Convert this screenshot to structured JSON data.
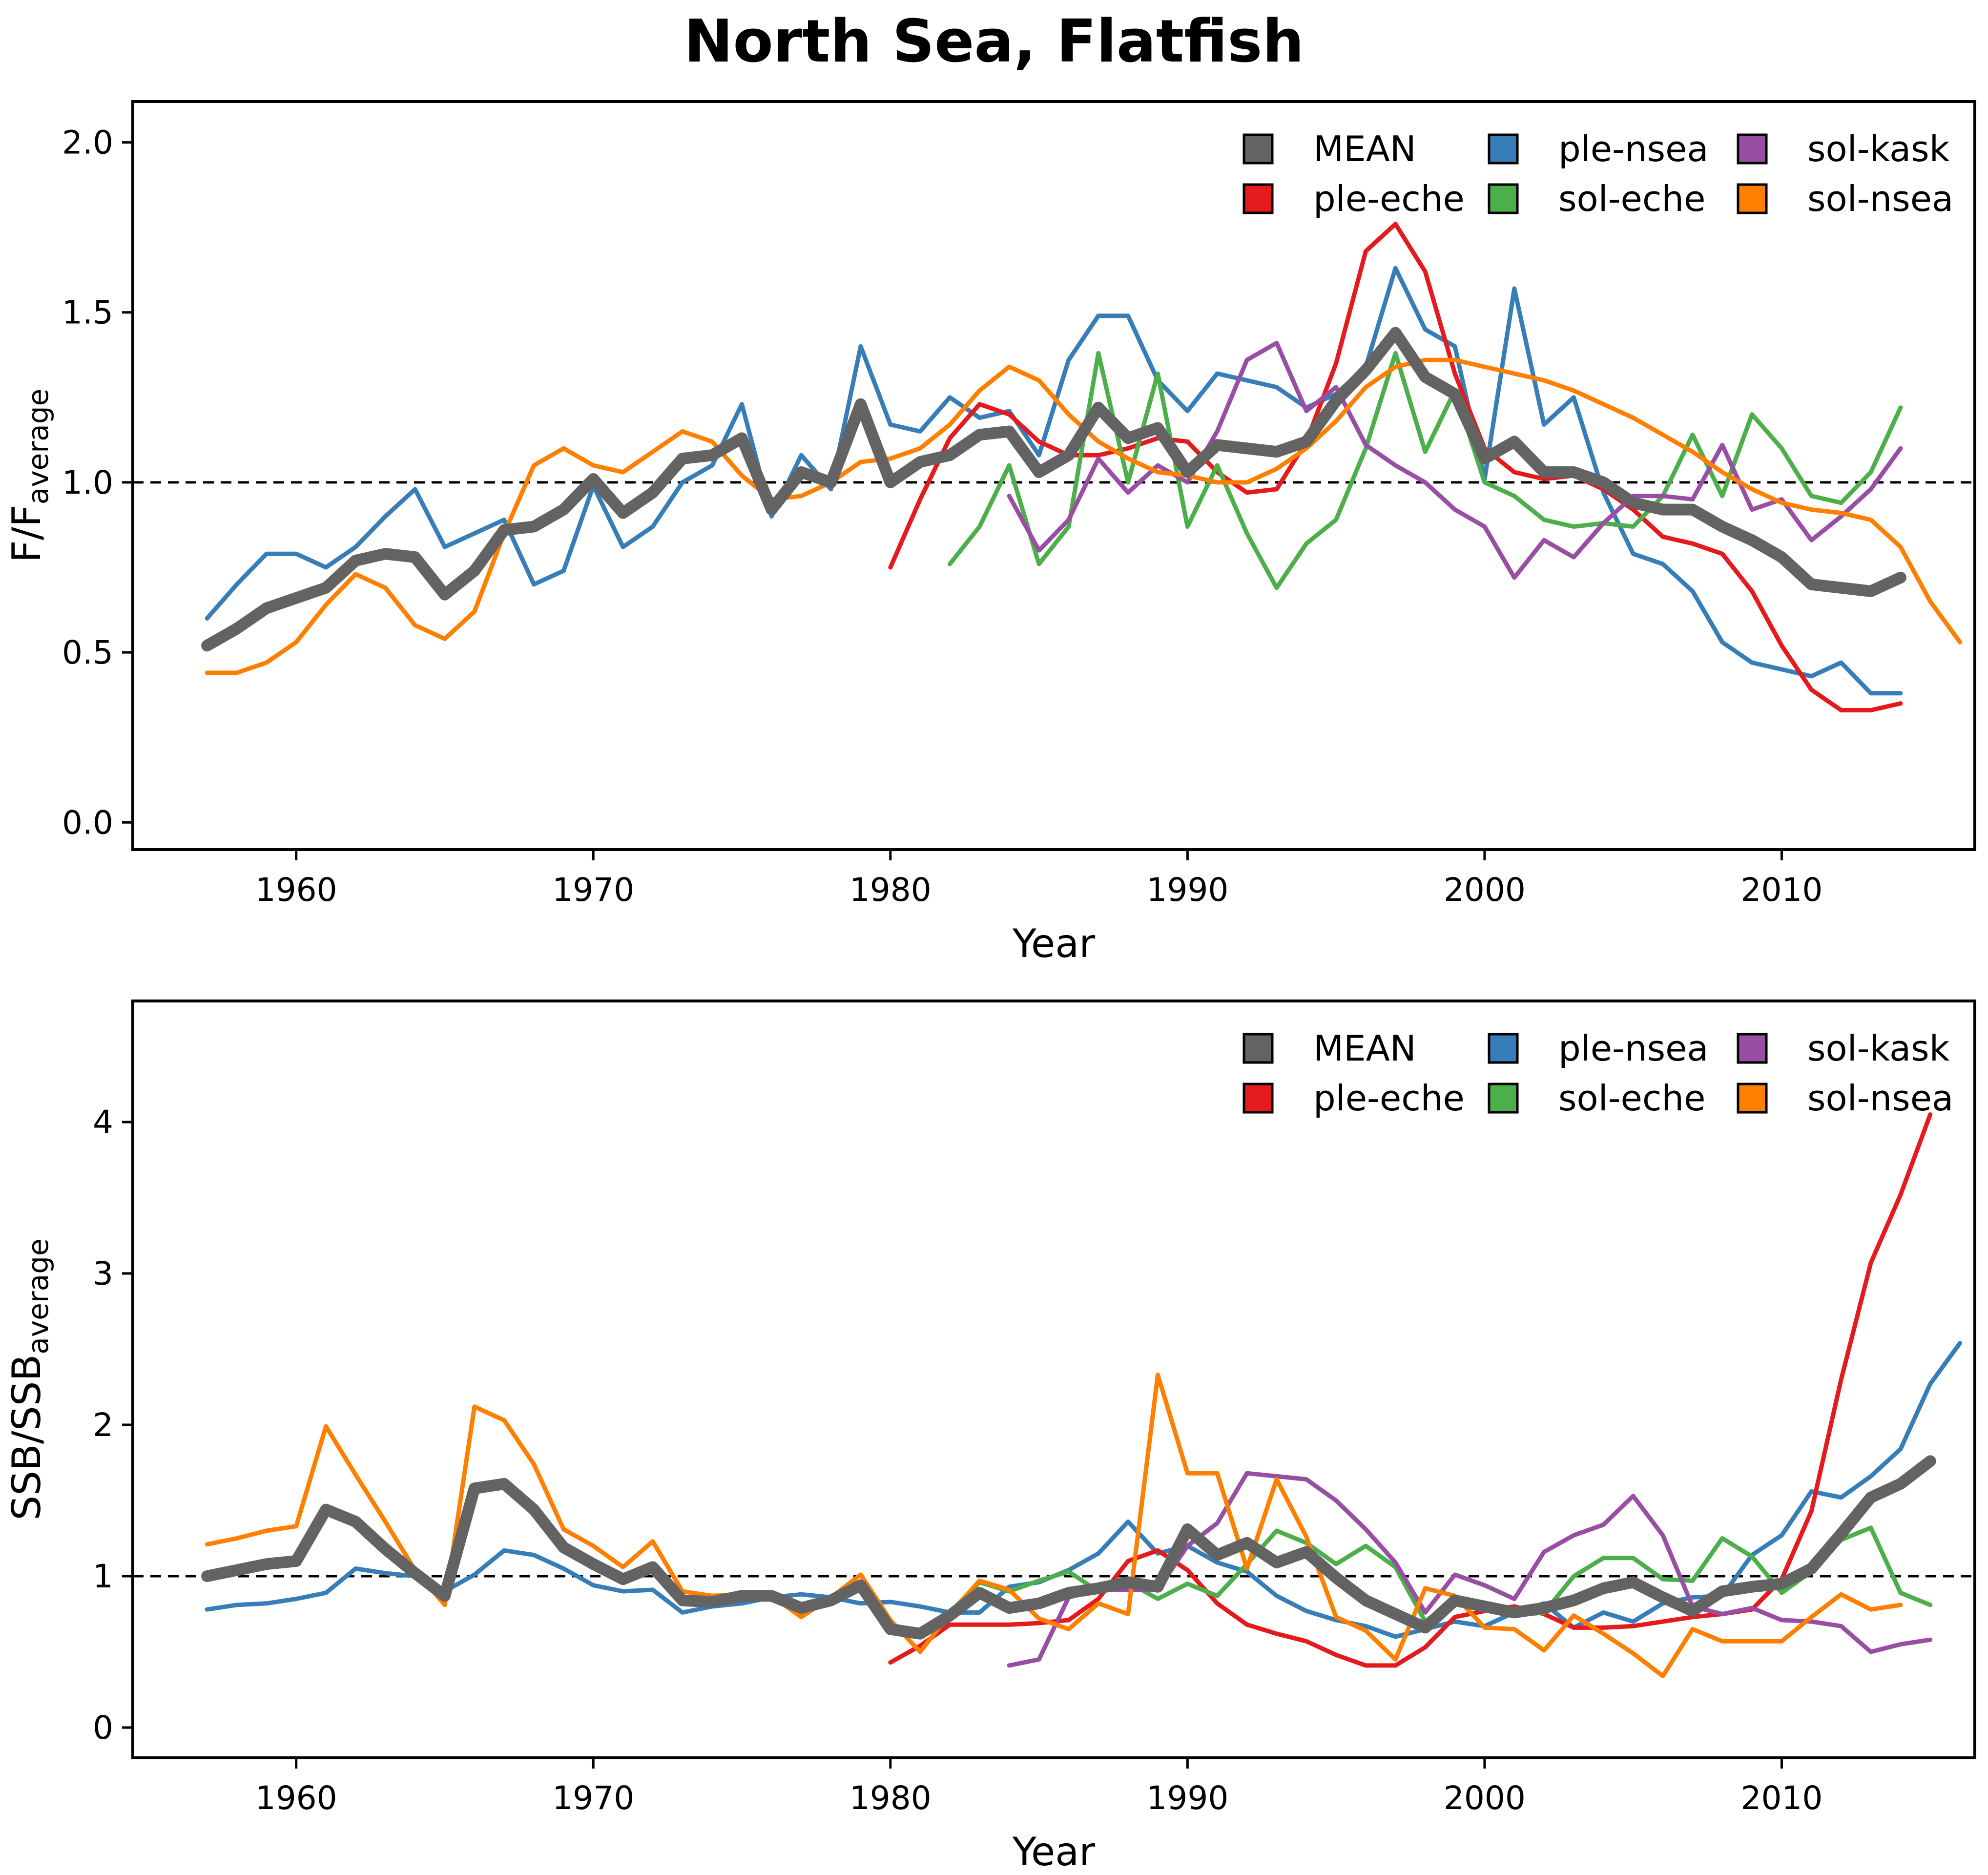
{
  "figure": {
    "title": "North Sea, Flatfish"
  },
  "legend": [
    {
      "label": "MEAN",
      "color": "#636363"
    },
    {
      "label": "ple-eche",
      "color": "#e41a1c"
    },
    {
      "label": "ple-nsea",
      "color": "#377eb8"
    },
    {
      "label": "sol-eche",
      "color": "#4daf4a"
    },
    {
      "label": "sol-kask",
      "color": "#984ea3"
    },
    {
      "label": "sol-nsea",
      "color": "#ff7f00"
    }
  ],
  "chart_data": [
    {
      "type": "line",
      "xlabel": "Year",
      "ylabel_main": "F/F",
      "ylabel_sub": "average",
      "xlim": [
        1954.5,
        2016.5
      ],
      "ylim": [
        -0.08,
        2.12
      ],
      "x_ticks": [
        1960,
        1970,
        1980,
        1990,
        2000,
        2010
      ],
      "y_ticks": [
        0.0,
        0.5,
        1.0,
        1.5,
        2.0
      ],
      "y_tick_labels": [
        "0.0",
        "0.5",
        "1.0",
        "1.5",
        "2.0"
      ],
      "reference_line": 1.0,
      "grid": false,
      "legend_position": "top-right",
      "series": [
        {
          "name": "ple-nsea",
          "color": "#377eb8",
          "width": 9,
          "start": 1957,
          "values": [
            0.6,
            0.7,
            0.79,
            0.79,
            0.75,
            0.81,
            0.9,
            0.98,
            0.81,
            0.85,
            0.89,
            0.7,
            0.74,
            0.99,
            0.81,
            0.87,
            1.0,
            1.05,
            1.23,
            0.9,
            1.08,
            0.98,
            1.4,
            1.17,
            1.15,
            1.25,
            1.19,
            1.21,
            1.08,
            1.36,
            1.49,
            1.49,
            1.3,
            1.21,
            1.32,
            1.3,
            1.28,
            1.22,
            1.26,
            1.34,
            1.63,
            1.45,
            1.4,
            1.01,
            1.57,
            1.17,
            1.25,
            0.97,
            0.79,
            0.76,
            0.68,
            0.53,
            0.47,
            0.45,
            0.43,
            0.47,
            0.38,
            0.38
          ]
        },
        {
          "name": "ple-eche",
          "color": "#e41a1c",
          "width": 9,
          "start": 1980,
          "values": [
            0.75,
            0.95,
            1.13,
            1.23,
            1.2,
            1.12,
            1.08,
            1.08,
            1.1,
            1.13,
            1.12,
            1.03,
            0.97,
            0.98,
            1.12,
            1.35,
            1.68,
            1.76,
            1.62,
            1.32,
            1.1,
            1.03,
            1.01,
            1.02,
            0.98,
            0.92,
            0.84,
            0.82,
            0.79,
            0.68,
            0.52,
            0.39,
            0.33,
            0.33,
            0.35
          ]
        },
        {
          "name": "sol-eche",
          "color": "#4daf4a",
          "width": 9,
          "start": 1982,
          "values": [
            0.76,
            0.87,
            1.05,
            0.76,
            0.87,
            1.38,
            1.0,
            1.32,
            0.87,
            1.05,
            0.85,
            0.69,
            0.82,
            0.89,
            1.1,
            1.38,
            1.09,
            1.27,
            1.0,
            0.96,
            0.89,
            0.87,
            0.88,
            0.87,
            0.96,
            1.14,
            0.96,
            1.2,
            1.1,
            0.96,
            0.94,
            1.03,
            1.22
          ]
        },
        {
          "name": "sol-kask",
          "color": "#984ea3",
          "width": 9,
          "start": 1984,
          "values": [
            0.96,
            0.8,
            0.89,
            1.07,
            0.97,
            1.05,
            1.0,
            1.15,
            1.36,
            1.41,
            1.21,
            1.28,
            1.11,
            1.05,
            1.0,
            0.92,
            0.87,
            0.72,
            0.83,
            0.78,
            0.88,
            0.96,
            0.96,
            0.95,
            1.11,
            0.92,
            0.95,
            0.83,
            0.9,
            0.98,
            1.1
          ]
        },
        {
          "name": "sol-nsea",
          "color": "#ff7f00",
          "width": 9,
          "start": 1957,
          "values": [
            0.44,
            0.44,
            0.47,
            0.53,
            0.64,
            0.73,
            0.69,
            0.58,
            0.54,
            0.62,
            0.85,
            1.05,
            1.1,
            1.05,
            1.03,
            1.09,
            1.15,
            1.12,
            1.02,
            0.95,
            0.96,
            1.0,
            1.06,
            1.07,
            1.1,
            1.17,
            1.27,
            1.34,
            1.3,
            1.2,
            1.12,
            1.07,
            1.03,
            1.02,
            1.0,
            1.0,
            1.04,
            1.1,
            1.18,
            1.28,
            1.34,
            1.36,
            1.36,
            1.34,
            1.32,
            1.3,
            1.27,
            1.23,
            1.19,
            1.14,
            1.09,
            1.03,
            0.98,
            0.94,
            0.92,
            0.91,
            0.89,
            0.81,
            0.65,
            0.53
          ]
        },
        {
          "name": "MEAN",
          "color": "#636363",
          "width": 24,
          "start": 1957,
          "values": [
            0.52,
            0.57,
            0.63,
            0.66,
            0.69,
            0.77,
            0.79,
            0.78,
            0.67,
            0.74,
            0.86,
            0.87,
            0.92,
            1.01,
            0.91,
            0.97,
            1.07,
            1.08,
            1.13,
            0.92,
            1.03,
            1.0,
            1.23,
            1.0,
            1.06,
            1.08,
            1.14,
            1.15,
            1.03,
            1.08,
            1.22,
            1.13,
            1.16,
            1.03,
            1.11,
            1.1,
            1.09,
            1.12,
            1.24,
            1.33,
            1.44,
            1.31,
            1.26,
            1.07,
            1.12,
            1.03,
            1.03,
            1.0,
            0.94,
            0.92,
            0.92,
            0.87,
            0.83,
            0.78,
            0.7,
            0.69,
            0.68,
            0.72
          ]
        }
      ]
    },
    {
      "type": "line",
      "xlabel": "Year",
      "ylabel_main": "SSB/SSB",
      "ylabel_sub": "average",
      "xlim": [
        1954.5,
        2016.5
      ],
      "ylim": [
        -0.2,
        4.8
      ],
      "x_ticks": [
        1960,
        1970,
        1980,
        1990,
        2000,
        2010
      ],
      "y_ticks": [
        0,
        1,
        2,
        3,
        4
      ],
      "y_tick_labels": [
        "0",
        "1",
        "2",
        "3",
        "4"
      ],
      "reference_line": 1.0,
      "grid": false,
      "legend_position": "top-right",
      "series": [
        {
          "name": "ple-nsea",
          "color": "#377eb8",
          "width": 9,
          "start": 1957,
          "values": [
            0.78,
            0.81,
            0.82,
            0.85,
            0.89,
            1.05,
            1.02,
            1.0,
            0.9,
            1.01,
            1.17,
            1.14,
            1.05,
            0.94,
            0.9,
            0.91,
            0.76,
            0.8,
            0.82,
            0.86,
            0.88,
            0.86,
            0.82,
            0.83,
            0.8,
            0.76,
            0.76,
            0.93,
            0.96,
            1.04,
            1.15,
            1.36,
            1.15,
            1.2,
            1.09,
            1.03,
            0.87,
            0.77,
            0.71,
            0.67,
            0.6,
            0.65,
            0.7,
            0.67,
            0.76,
            0.82,
            0.66,
            0.76,
            0.7,
            0.82,
            0.86,
            0.87,
            1.14,
            1.27,
            1.56,
            1.52,
            1.66,
            1.84,
            2.27,
            2.54
          ]
        },
        {
          "name": "ple-eche",
          "color": "#e41a1c",
          "width": 9,
          "start": 1980,
          "values": [
            0.43,
            0.54,
            0.68,
            0.68,
            0.68,
            0.69,
            0.71,
            0.85,
            1.1,
            1.17,
            1.04,
            0.82,
            0.68,
            0.62,
            0.57,
            0.48,
            0.41,
            0.41,
            0.53,
            0.73,
            0.77,
            0.8,
            0.75,
            0.66,
            0.66,
            0.67,
            0.7,
            0.73,
            0.75,
            0.78,
            0.98,
            1.43,
            2.3,
            3.07,
            3.52,
            4.05
          ]
        },
        {
          "name": "sol-eche",
          "color": "#4daf4a",
          "width": 9,
          "start": 1982,
          "values": [
            0.76,
            0.96,
            0.9,
            0.97,
            1.03,
            0.9,
            0.96,
            0.85,
            0.95,
            0.87,
            1.08,
            1.3,
            1.22,
            1.08,
            1.2,
            1.06,
            0.7,
            0.85,
            0.8,
            0.74,
            0.76,
            1.0,
            1.12,
            1.12,
            0.98,
            0.97,
            1.25,
            1.13,
            0.89,
            1.03,
            1.24,
            1.32,
            0.89,
            0.81
          ]
        },
        {
          "name": "sol-kask",
          "color": "#984ea3",
          "width": 9,
          "start": 1984,
          "values": [
            0.41,
            0.45,
            0.86,
            0.91,
            0.91,
            0.91,
            1.2,
            1.35,
            1.68,
            1.66,
            1.64,
            1.5,
            1.31,
            1.09,
            0.76,
            1.01,
            0.94,
            0.85,
            1.16,
            1.27,
            1.34,
            1.53,
            1.27,
            0.8,
            0.75,
            0.79,
            0.71,
            0.7,
            0.67,
            0.5,
            0.55,
            0.58
          ]
        },
        {
          "name": "sol-nsea",
          "color": "#ff7f00",
          "width": 9,
          "start": 1957,
          "values": [
            1.21,
            1.25,
            1.3,
            1.33,
            1.99,
            1.67,
            1.36,
            1.04,
            0.81,
            2.12,
            2.03,
            1.74,
            1.31,
            1.2,
            1.06,
            1.23,
            0.9,
            0.87,
            0.88,
            0.87,
            0.73,
            0.86,
            1.01,
            0.71,
            0.5,
            0.75,
            0.97,
            0.91,
            0.72,
            0.65,
            0.82,
            0.75,
            2.33,
            1.68,
            1.68,
            1.05,
            1.64,
            1.26,
            0.73,
            0.64,
            0.45,
            0.92,
            0.87,
            0.66,
            0.65,
            0.51,
            0.74,
            0.62,
            0.49,
            0.34,
            0.65,
            0.57,
            0.57,
            0.57,
            0.73,
            0.88,
            0.78,
            0.81
          ]
        },
        {
          "name": "MEAN",
          "color": "#636363",
          "width": 24,
          "start": 1957,
          "values": [
            1.0,
            1.04,
            1.08,
            1.1,
            1.44,
            1.36,
            1.18,
            1.02,
            0.87,
            1.58,
            1.61,
            1.44,
            1.19,
            1.08,
            0.98,
            1.06,
            0.84,
            0.83,
            0.87,
            0.87,
            0.79,
            0.84,
            0.94,
            0.65,
            0.62,
            0.74,
            0.89,
            0.79,
            0.82,
            0.89,
            0.92,
            0.96,
            0.93,
            1.31,
            1.14,
            1.22,
            1.09,
            1.16,
            0.99,
            0.84,
            0.75,
            0.66,
            0.84,
            0.8,
            0.76,
            0.79,
            0.84,
            0.92,
            0.96,
            0.86,
            0.77,
            0.9,
            0.93,
            0.95,
            1.05,
            1.28,
            1.52,
            1.61,
            1.76
          ]
        }
      ]
    }
  ]
}
